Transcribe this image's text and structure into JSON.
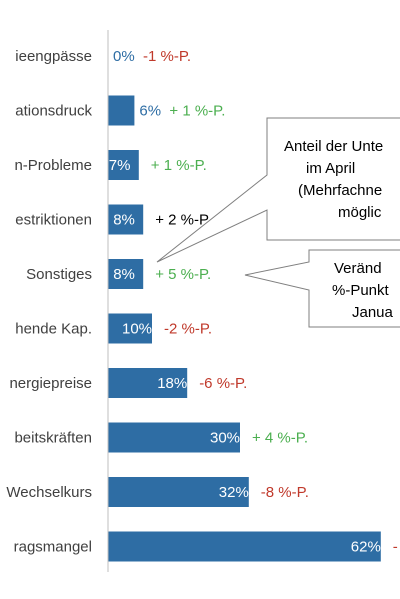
{
  "chart_data": {
    "type": "bar",
    "orientation": "horizontal",
    "categories": [
      "ieengpässe",
      "ationsdruck",
      "n-Probleme",
      "estriktionen",
      "Sonstiges",
      "hende Kap.",
      "nergiepreise",
      "beitskräften",
      "Wechselkurs",
      "ragsmangel"
    ],
    "values": [
      0,
      6,
      7,
      8,
      8,
      10,
      18,
      30,
      32,
      62
    ],
    "value_labels": [
      "0%",
      "6%",
      "7%",
      "8%",
      "8%",
      "10%",
      "18%",
      "30%",
      "32%",
      "62%"
    ],
    "changes": [
      "-1 %-P.",
      "+ 1 %-P.",
      "+ 1 %-P.",
      "+ 2 %-P.",
      "+ 5 %-P.",
      "-2 %-P.",
      "-6 %-P.",
      "+ 4 %-P.",
      "-8 %-P.",
      "-"
    ],
    "xlim": [
      0,
      62
    ],
    "grid": false,
    "legend": "none",
    "colors": {
      "bar": "#2E6DA4",
      "label_inside": "#ffffff",
      "label_outside": "#2E6DA4",
      "positive": "#4CAF50",
      "negative": "#C0392B",
      "neutral": "#000000",
      "axis": "#BFBFBF"
    },
    "callouts": [
      {
        "lines": [
          "Anteil der Unte",
          "im April",
          "(Mehrfachne",
          "möglic"
        ]
      },
      {
        "lines": [
          "Veränd",
          "%-Punkt",
          "Janua"
        ]
      }
    ]
  }
}
